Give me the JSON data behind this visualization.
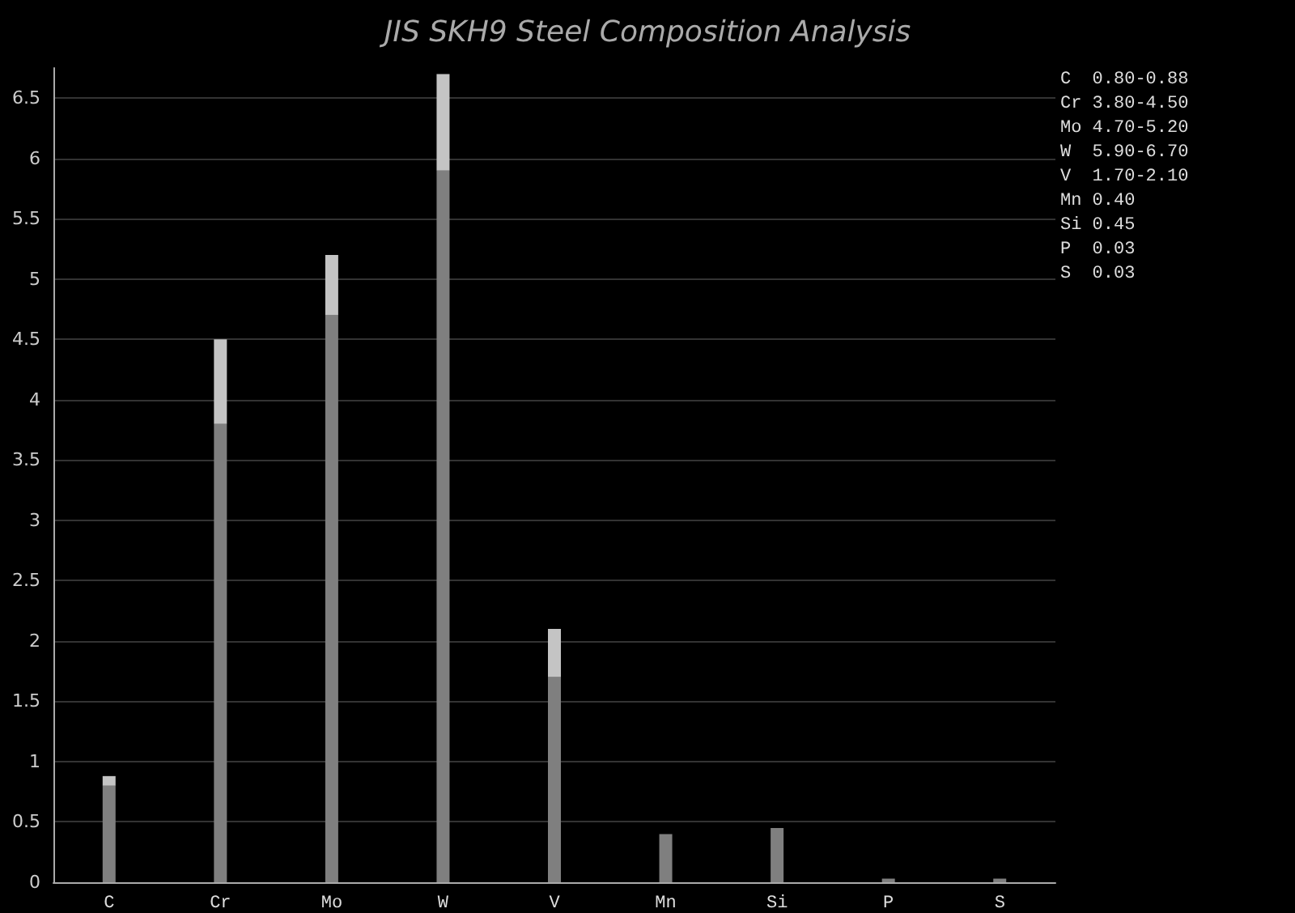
{
  "chart_data": {
    "type": "bar",
    "title": "JIS SKH9 Steel Composition Analysis",
    "categories": [
      "C",
      "Cr",
      "Mo",
      "W",
      "V",
      "Mn",
      "Si",
      "P",
      "S"
    ],
    "stacked": true,
    "series": [
      {
        "color": "#7f7f7f",
        "values": [
          0.8,
          3.8,
          4.7,
          5.9,
          1.7,
          0.4,
          0.45,
          0.03,
          0.03
        ]
      },
      {
        "color": "#c4c4c4",
        "values": [
          0.08,
          0.7,
          0.5,
          0.8,
          0.4,
          null,
          null,
          null,
          null
        ]
      }
    ],
    "ylim": [
      0,
      6.75
    ],
    "yticks": [
      0,
      0.5,
      1,
      1.5,
      2,
      2.5,
      3,
      3.5,
      4,
      4.5,
      5,
      5.5,
      6,
      6.5
    ],
    "grid": "y",
    "annotations": [
      "C  0.80-0.88",
      "Cr 3.80-4.50",
      "Mo 4.70-5.20",
      "W  5.90-6.70",
      "V  1.70-2.10",
      "Mn 0.40",
      "Si 0.45",
      "P  0.03",
      "S  0.03"
    ]
  }
}
